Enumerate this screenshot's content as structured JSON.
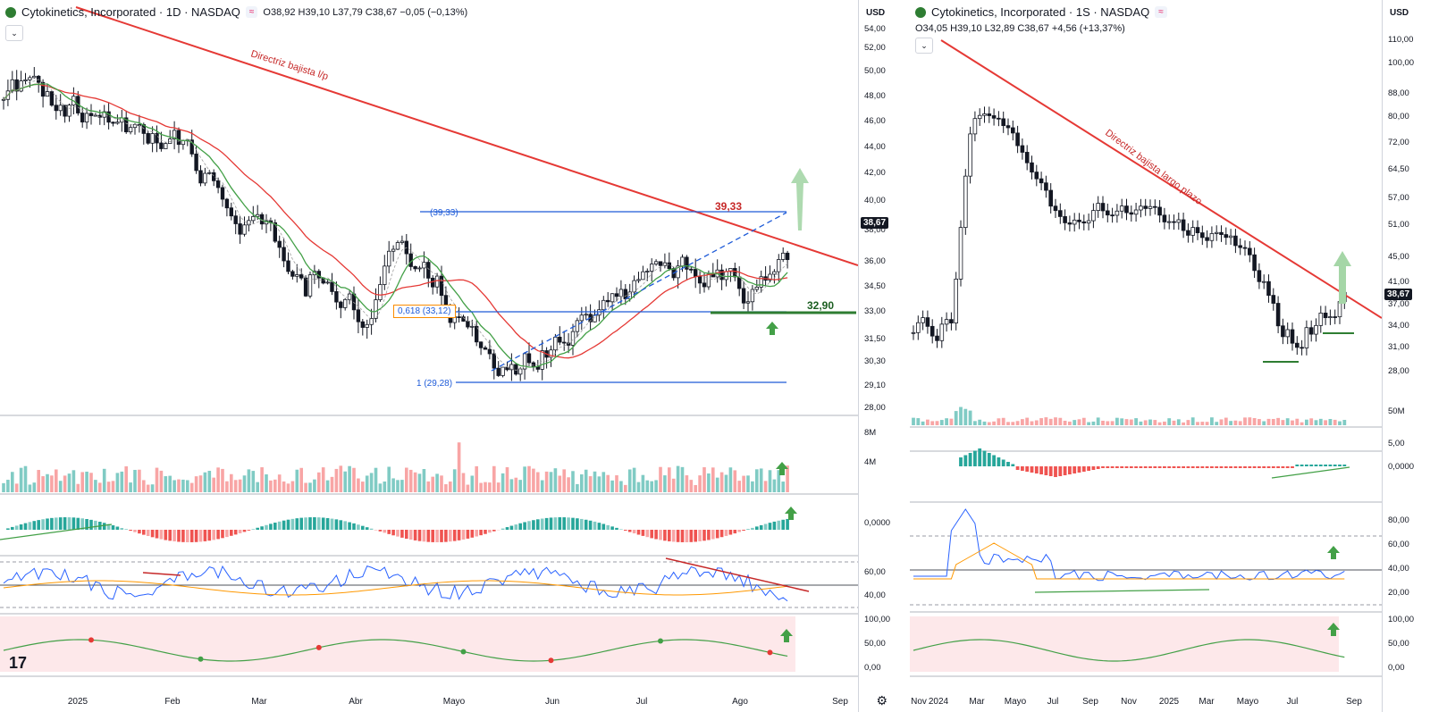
{
  "left": {
    "title": "Cytokinetics, Incorporated · 1D · NASDAQ",
    "ohlc": "O38,92 H39,10 L37,79 C38,67 −0,05 (−0,13%)",
    "currency": "USD",
    "price_ticks": [
      "54,00",
      "52,00",
      "50,00",
      "48,00",
      "46,00",
      "44,00",
      "42,00",
      "40,00",
      "38,00",
      "36,00",
      "34,50",
      "33,00",
      "31,50",
      "30,30",
      "29,10",
      "28,00"
    ],
    "last_price": "38,67",
    "vol_ticks": [
      "8M",
      "4M"
    ],
    "macd_tick": "0,0000",
    "rsi_ticks": [
      "60,00",
      "40,00"
    ],
    "osc_ticks": [
      "100,00",
      "50,00",
      "0,00"
    ],
    "dates": [
      "2025",
      "Feb",
      "Mar",
      "Abr",
      "Mayo",
      "Jun",
      "Jul",
      "Ago",
      "Sep"
    ],
    "trend_label": "Directriz bajista l/p",
    "level_high": "39,33",
    "level_support": "32,90",
    "fib_618": "0,618 (33,12)",
    "fib_1": "1 (29,28)",
    "fib_0": "(39,33)",
    "badge": "≈",
    "colors": {
      "trend": "#e53935",
      "fib": "#1e5bd8",
      "support": "#2e7d32",
      "arrow": "#43a047",
      "up": "#26a69a",
      "down": "#ef5350"
    }
  },
  "right": {
    "title": "Cytokinetics, Incorporated · 1S · NASDAQ",
    "ohlc": "O34,05 H39,10 L32,89 C38,67 +4,56 (+13,37%)",
    "currency": "USD",
    "price_ticks": [
      "110,00",
      "100,00",
      "88,00",
      "80,00",
      "72,00",
      "64,50",
      "57,00",
      "51,00",
      "45,00",
      "41,00",
      "37,00",
      "34,00",
      "31,00",
      "28,00"
    ],
    "last_price": "38,67",
    "vol_tick": "50M",
    "macd_ticks": [
      "5,00",
      "0,0000"
    ],
    "rsi_ticks": [
      "80,00",
      "60,00",
      "40,00",
      "20,00"
    ],
    "osc_ticks": [
      "100,00",
      "50,00",
      "0,00"
    ],
    "dates": [
      "Nov",
      "2024",
      "Mar",
      "Mayo",
      "Jul",
      "Sep",
      "Nov",
      "2025",
      "Mar",
      "Mayo",
      "Jul",
      "Sep"
    ],
    "trend_label": "Directriz bajista largo plazo",
    "badge": "≈"
  },
  "footer": {
    "tv_logo": "17"
  }
}
